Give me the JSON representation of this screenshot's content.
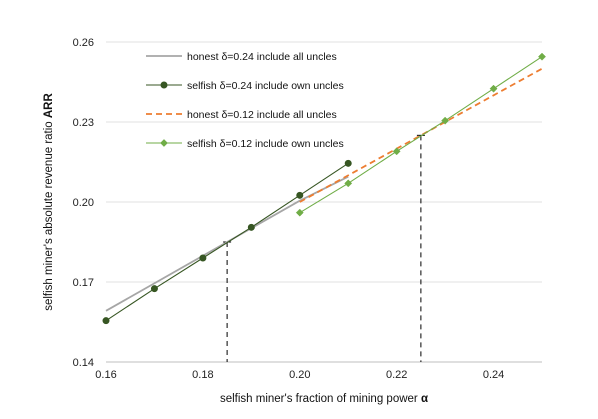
{
  "chart_data": {
    "type": "line",
    "xlabel_prefix": "selfish miner's fraction of mining power ",
    "xlabel_symbol": "α",
    "ylabel_prefix": "selfish miner's absolute revenue ratio ",
    "ylabel_symbol": "ARR",
    "xlim": [
      0.16,
      0.25
    ],
    "ylim": [
      0.14,
      0.26
    ],
    "x_ticks": [
      0.16,
      0.18,
      0.2,
      0.22,
      0.24
    ],
    "x_tick_labels": [
      "0.16",
      "0.18",
      "0.20",
      "0.22",
      "0.24"
    ],
    "y_ticks": [
      0.14,
      0.17,
      0.2,
      0.23,
      0.26
    ],
    "y_tick_labels": [
      "0.14",
      "0.17",
      "0.20",
      "0.23",
      "0.26"
    ],
    "legend_position": "top-left",
    "series": [
      {
        "name": "honest δ=0.24 include all uncles",
        "color": "#a6a6a6",
        "style": "solid",
        "marker": "none",
        "points": [
          [
            0.16,
            0.1592
          ],
          [
            0.185,
            0.185
          ],
          [
            0.2,
            0.2005
          ],
          [
            0.21,
            0.2095
          ]
        ]
      },
      {
        "name": "selfish δ=0.24 include own uncles",
        "color": "#375623",
        "style": "solid",
        "marker": "circle",
        "points": [
          [
            0.16,
            0.1555
          ],
          [
            0.17,
            0.1675
          ],
          [
            0.18,
            0.179
          ],
          [
            0.19,
            0.1905
          ],
          [
            0.2,
            0.2025
          ],
          [
            0.21,
            0.2145
          ]
        ]
      },
      {
        "name": "honest δ=0.12 include all uncles",
        "color": "#ed7d31",
        "style": "dashed",
        "marker": "none",
        "points": [
          [
            0.2,
            0.2
          ],
          [
            0.225,
            0.225
          ],
          [
            0.25,
            0.25
          ]
        ]
      },
      {
        "name": "selfish δ=0.12 include own uncles",
        "color": "#70ad47",
        "style": "solid",
        "marker": "diamond",
        "points": [
          [
            0.2,
            0.196
          ],
          [
            0.21,
            0.207
          ],
          [
            0.22,
            0.219
          ],
          [
            0.23,
            0.2305
          ],
          [
            0.24,
            0.2425
          ],
          [
            0.25,
            0.2545
          ]
        ]
      }
    ],
    "reference_lines": [
      {
        "x": 0.185,
        "y": 0.185
      },
      {
        "x": 0.225,
        "y": 0.225
      }
    ]
  }
}
